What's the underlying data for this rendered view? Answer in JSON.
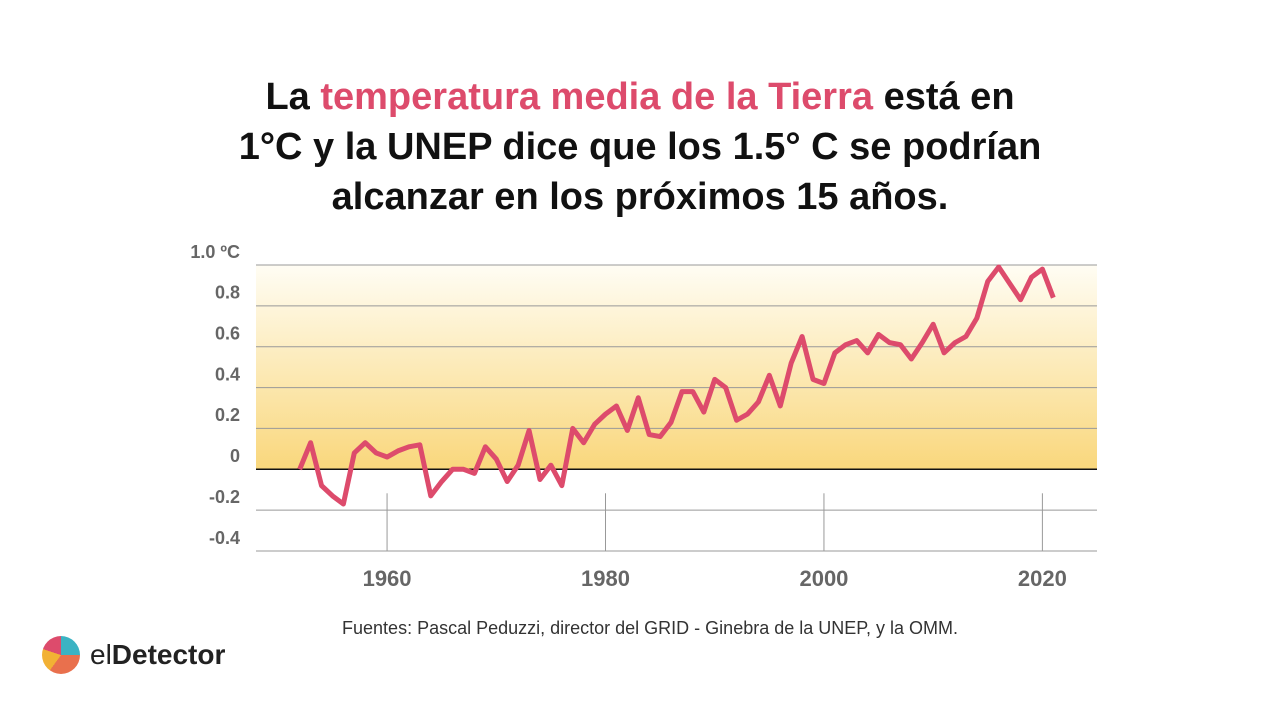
{
  "title_parts": [
    "La ",
    "temperatura media de la Tierra",
    " está en",
    "1°C y la UNEP dice que los 1.5° C se podrían",
    "alcanzar en los próximos 15 años."
  ],
  "source": "Fuentes: Pascal Peduzzi, director del GRID - Ginebra de la UNEP, y la OMM.",
  "logo": [
    "el",
    "Detector"
  ],
  "chart_data": {
    "type": "line",
    "x": [
      1952,
      1953,
      1954,
      1955,
      1956,
      1957,
      1958,
      1959,
      1960,
      1961,
      1962,
      1963,
      1964,
      1965,
      1966,
      1967,
      1968,
      1969,
      1970,
      1971,
      1972,
      1973,
      1974,
      1975,
      1976,
      1977,
      1978,
      1979,
      1980,
      1981,
      1982,
      1983,
      1984,
      1985,
      1986,
      1987,
      1988,
      1989,
      1990,
      1991,
      1992,
      1993,
      1994,
      1995,
      1996,
      1997,
      1998,
      1999,
      2000,
      2001,
      2002,
      2003,
      2004,
      2005,
      2006,
      2007,
      2008,
      2009,
      2010,
      2011,
      2012,
      2013,
      2014,
      2015,
      2016,
      2017,
      2018,
      2019,
      2020,
      2021
    ],
    "values": [
      0.0,
      0.13,
      -0.08,
      -0.13,
      -0.17,
      0.08,
      0.13,
      0.08,
      0.06,
      0.09,
      0.11,
      0.12,
      -0.13,
      -0.06,
      0.0,
      0.0,
      -0.02,
      0.11,
      0.05,
      -0.06,
      0.02,
      0.19,
      -0.05,
      0.02,
      -0.08,
      0.2,
      0.13,
      0.22,
      0.27,
      0.31,
      0.19,
      0.35,
      0.17,
      0.16,
      0.23,
      0.38,
      0.38,
      0.28,
      0.44,
      0.4,
      0.24,
      0.27,
      0.33,
      0.46,
      0.31,
      0.52,
      0.65,
      0.44,
      0.42,
      0.57,
      0.61,
      0.63,
      0.57,
      0.66,
      0.62,
      0.61,
      0.54,
      0.62,
      0.71,
      0.57,
      0.62,
      0.65,
      0.74,
      0.92,
      0.99,
      0.91,
      0.83,
      0.94,
      0.98,
      0.84
    ],
    "color": "#dd4b6c",
    "xlim": [
      1948,
      2025
    ],
    "xticks": [
      1960,
      1980,
      2000,
      2020
    ],
    "ylim": [
      -0.4,
      1.0
    ],
    "yticks": [
      -0.4,
      -0.2,
      0,
      0.2,
      0.4,
      0.6,
      0.8,
      {
        "value": 1.0,
        "label": "1.0 ºC"
      }
    ],
    "grid": true
  }
}
